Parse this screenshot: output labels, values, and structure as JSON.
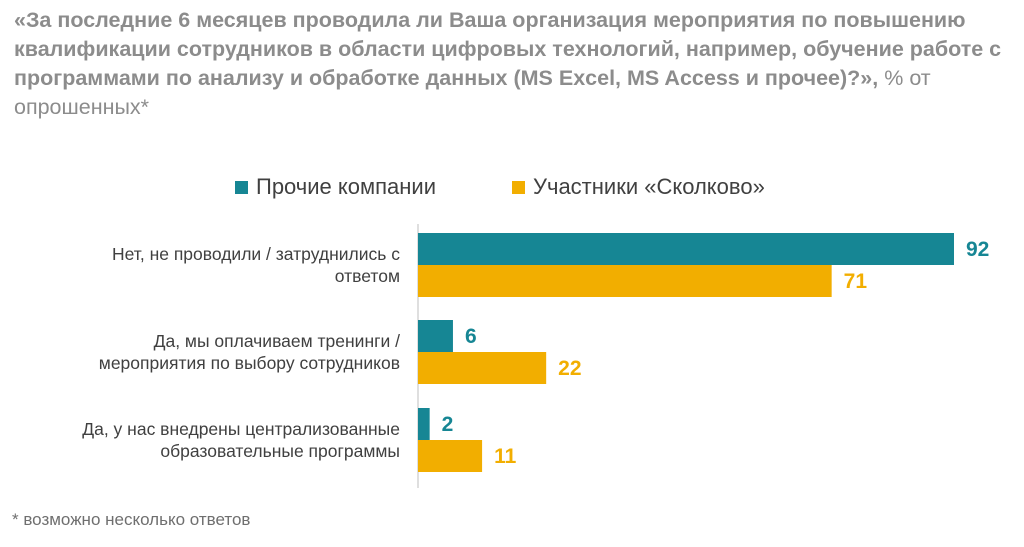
{
  "title": {
    "question": "«За последние 6 месяцев проводила ли Ваша организация мероприятия по повышению квалификации сотрудников в области цифровых технологий, например, обучение работе с программами по анализу и обработке данных (MS Excel, MS Access и прочее)?»,",
    "unit": " % от опрошенных*"
  },
  "footnote": "* возможно несколько ответов",
  "colors": {
    "others": "#168694",
    "skolkovo": "#F2AE00"
  },
  "chart_data": {
    "type": "bar",
    "orientation": "horizontal",
    "categories": [
      [
        "Нет, не проводили / затруднились с",
        "ответом"
      ],
      [
        "Да, мы оплачиваем тренинги /",
        "мероприятия по выбору сотрудников"
      ],
      [
        "Да, у нас внедрены централизованные",
        "образовательные программы"
      ]
    ],
    "series": [
      {
        "name": "Прочие компании",
        "values": [
          92,
          6,
          2
        ]
      },
      {
        "name": "Участники «Сколково»",
        "values": [
          71,
          22,
          11
        ]
      }
    ],
    "xlim": [
      0,
      92
    ],
    "grid": false,
    "legend_position": "top-center"
  }
}
